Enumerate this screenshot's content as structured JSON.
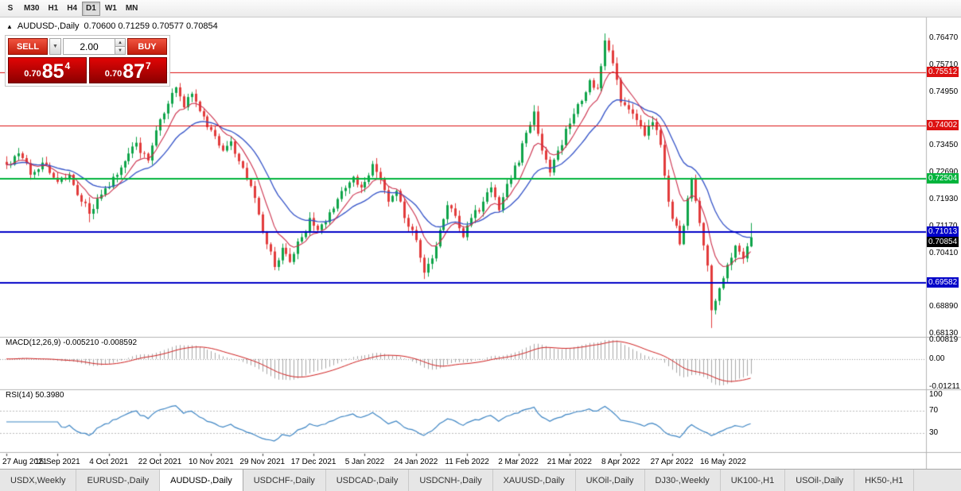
{
  "toolbar": {
    "periods": [
      "S",
      "M30",
      "H1",
      "H4",
      "D1",
      "W1",
      "MN"
    ],
    "active": "D1"
  },
  "chart": {
    "toggle_icon": "▲",
    "title": "AUDUSD-,Daily",
    "ohlc": "0.70600 0.71259 0.70577 0.70854"
  },
  "trade_panel": {
    "sell_label": "SELL",
    "buy_label": "BUY",
    "volume": "2.00",
    "dropdown_icon": "▼",
    "spin_up_icon": "▲",
    "spin_down_icon": "▼",
    "bid": {
      "small": "0.70",
      "big": "85",
      "pip": "4"
    },
    "ask": {
      "small": "0.70",
      "big": "87",
      "pip": "7"
    }
  },
  "indicators": {
    "macd": {
      "header": "MACD(12,26,9) -0.005210 -0.008592",
      "axis": [
        [
          0.00819,
          "0.00819"
        ],
        [
          0,
          "0.00"
        ],
        [
          -0.01211,
          "-0.01211"
        ]
      ],
      "range": [
        -0.01211,
        0.00819
      ]
    },
    "rsi": {
      "header": "RSI(14) 50.3980",
      "axis": [
        [
          100,
          "100"
        ],
        [
          70,
          "70"
        ],
        [
          30,
          "30"
        ]
      ],
      "levels": [
        70,
        30
      ]
    }
  },
  "price_axis": {
    "min": 0.6805,
    "max": 0.7705,
    "ticks": [
      [
        0.7647,
        "0.76470"
      ],
      [
        0.7571,
        "0.75710"
      ],
      [
        0.7495,
        "0.74950"
      ],
      [
        0.7345,
        "0.73450"
      ],
      [
        0.7269,
        "0.72690"
      ],
      [
        0.7193,
        "0.71930"
      ],
      [
        0.7117,
        "0.71170"
      ],
      [
        0.7041,
        "0.70410"
      ],
      [
        0.6889,
        "0.68890"
      ],
      [
        0.6813,
        "0.68130"
      ]
    ]
  },
  "hlines": [
    {
      "price": 0.75512,
      "label": "0.75512",
      "color": "#dd1111",
      "lw": 1
    },
    {
      "price": 0.74002,
      "label": "0.74002",
      "color": "#dd1111",
      "lw": 1
    },
    {
      "price": 0.72504,
      "label": "0.72504",
      "color": "#00b43c",
      "lw": 2
    },
    {
      "price": 0.71013,
      "label": "0.71013",
      "color": "#0000c8",
      "lw": 2
    },
    {
      "price": 0.69582,
      "label": "0.69582",
      "color": "#0000c8",
      "lw": 2
    }
  ],
  "current_price": {
    "value": 0.70854,
    "label": "0.70854",
    "bg": "#000000"
  },
  "x_axis": {
    "bar_step": 13,
    "labels": [
      "27 Aug 2021",
      "15 Sep 2021",
      "4 Oct 2021",
      "22 Oct 2021",
      "10 Nov 2021",
      "29 Nov 2021",
      "17 Dec 2021",
      "5 Jan 2022",
      "24 Jan 2022",
      "11 Feb 2022",
      "2 Mar 2022",
      "21 Mar 2022",
      "8 Apr 2022",
      "27 Apr 2022",
      "16 May 2022"
    ]
  },
  "tabs": {
    "active_index": 2,
    "items": [
      "USDX,Weekly",
      "EURUSD-,Daily",
      "AUDUSD-,Daily",
      "USDCHF-,Daily",
      "USDCAD-,Daily",
      "USDCNH-,Daily",
      "XAUUSD-,Daily",
      "UKOil-,Daily",
      "DJ30-,Weekly",
      "UK100-,H1",
      "USOil-,Daily",
      "HK50-,H1"
    ]
  },
  "colors": {
    "up": "#0fa44a",
    "down": "#e23b3b",
    "ma_fast": "#cc2e4a",
    "ma_slow": "#3352c8",
    "macd_hist": "#a8a8a8",
    "macd_signal": "#d01f1f",
    "rsi": "#3d85c4",
    "panel_sep": "#b3b3b3"
  },
  "chart_data": {
    "type": "candlestick",
    "symbol": "AUDUSD-",
    "timeframe": "Daily",
    "open": "0.70600",
    "high": "0.71259",
    "low": "0.70577",
    "close": "0.70854",
    "bid": "0.70854",
    "ask": "0.70877",
    "bars": 190,
    "ma_fast_period": 8,
    "ma_slow_period": 20,
    "macd_current": {
      "main": -0.00521,
      "signal": -0.008592
    },
    "rsi_current": 50.398,
    "close_path_anchors": [
      [
        0,
        0.729
      ],
      [
        3,
        0.7322
      ],
      [
        6,
        0.7262
      ],
      [
        9,
        0.7296
      ],
      [
        13,
        0.7242
      ],
      [
        16,
        0.7262
      ],
      [
        19,
        0.7186
      ],
      [
        21,
        0.7152
      ],
      [
        24,
        0.7206
      ],
      [
        27,
        0.7256
      ],
      [
        30,
        0.73
      ],
      [
        33,
        0.7352
      ],
      [
        36,
        0.7302
      ],
      [
        39,
        0.7418
      ],
      [
        41,
        0.7462
      ],
      [
        43,
        0.7508
      ],
      [
        45,
        0.7452
      ],
      [
        47,
        0.749
      ],
      [
        50,
        0.7426
      ],
      [
        52,
        0.7388
      ],
      [
        55,
        0.733
      ],
      [
        57,
        0.7356
      ],
      [
        59,
        0.73
      ],
      [
        62,
        0.723
      ],
      [
        64,
        0.715
      ],
      [
        66,
        0.7066
      ],
      [
        68,
        0.7002
      ],
      [
        70,
        0.7056
      ],
      [
        72,
        0.7016
      ],
      [
        75,
        0.7086
      ],
      [
        77,
        0.714
      ],
      [
        79,
        0.7106
      ],
      [
        82,
        0.7156
      ],
      [
        85,
        0.7216
      ],
      [
        88,
        0.7256
      ],
      [
        90,
        0.7226
      ],
      [
        93,
        0.7292
      ],
      [
        95,
        0.725
      ],
      [
        97,
        0.7186
      ],
      [
        99,
        0.7216
      ],
      [
        101,
        0.714
      ],
      [
        103,
        0.7106
      ],
      [
        106,
        0.6986
      ],
      [
        108,
        0.7026
      ],
      [
        110,
        0.7106
      ],
      [
        112,
        0.7176
      ],
      [
        114,
        0.7146
      ],
      [
        116,
        0.7086
      ],
      [
        118,
        0.714
      ],
      [
        121,
        0.7186
      ],
      [
        123,
        0.7226
      ],
      [
        125,
        0.7162
      ],
      [
        127,
        0.7236
      ],
      [
        130,
        0.7296
      ],
      [
        132,
        0.738
      ],
      [
        134,
        0.744
      ],
      [
        136,
        0.733
      ],
      [
        138,
        0.7268
      ],
      [
        140,
        0.733
      ],
      [
        143,
        0.7406
      ],
      [
        146,
        0.747
      ],
      [
        148,
        0.7528
      ],
      [
        150,
        0.7506
      ],
      [
        152,
        0.764
      ],
      [
        154,
        0.7576
      ],
      [
        156,
        0.7466
      ],
      [
        158,
        0.7446
      ],
      [
        160,
        0.7416
      ],
      [
        162,
        0.7372
      ],
      [
        164,
        0.741
      ],
      [
        166,
        0.7346
      ],
      [
        168,
        0.7186
      ],
      [
        171,
        0.7066
      ],
      [
        174,
        0.725
      ],
      [
        176,
        0.7126
      ],
      [
        178,
        0.7006
      ],
      [
        179,
        0.688
      ],
      [
        181,
        0.6942
      ],
      [
        183,
        0.7008
      ],
      [
        185,
        0.7062
      ],
      [
        187,
        0.7026
      ],
      [
        188,
        0.706
      ],
      [
        189,
        0.70854
      ]
    ],
    "wick_overrides": {
      "21": {
        "low": 0.7128
      },
      "106": {
        "low": 0.6968
      },
      "134": {
        "high": 0.7458
      },
      "152": {
        "high": 0.766
      },
      "179": {
        "low": 0.683
      }
    }
  }
}
